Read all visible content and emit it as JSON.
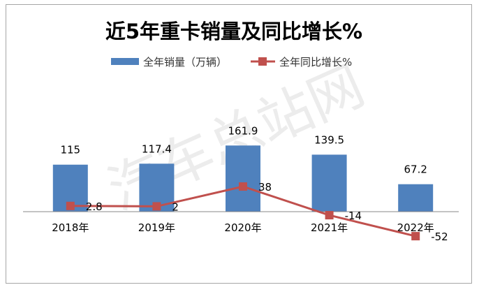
{
  "chart_data": {
    "type": "bar+line",
    "title": "近5年重卡销量及同比增长%",
    "categories": [
      "2018年",
      "2019年",
      "2020年",
      "2021年",
      "2022年"
    ],
    "series": [
      {
        "name": "全年销量（万辆）",
        "type": "bar",
        "axis": "left",
        "color": "#4f81bd",
        "values": [
          115,
          117.4,
          161.9,
          139.5,
          67.2
        ],
        "labels": [
          "115",
          "117.4",
          "161.9",
          "139.5",
          "67.2"
        ]
      },
      {
        "name": "全年同比增长%",
        "type": "line",
        "axis": "right",
        "color": "#c0504d",
        "marker": "square",
        "values": [
          2.8,
          2,
          38,
          -14,
          -52
        ],
        "labels": [
          "2.8",
          "2",
          "38",
          "-14",
          "-52"
        ]
      }
    ],
    "legend": "top",
    "grid": false,
    "axis_labels_visible": false
  },
  "watermark": "汽车总站网"
}
